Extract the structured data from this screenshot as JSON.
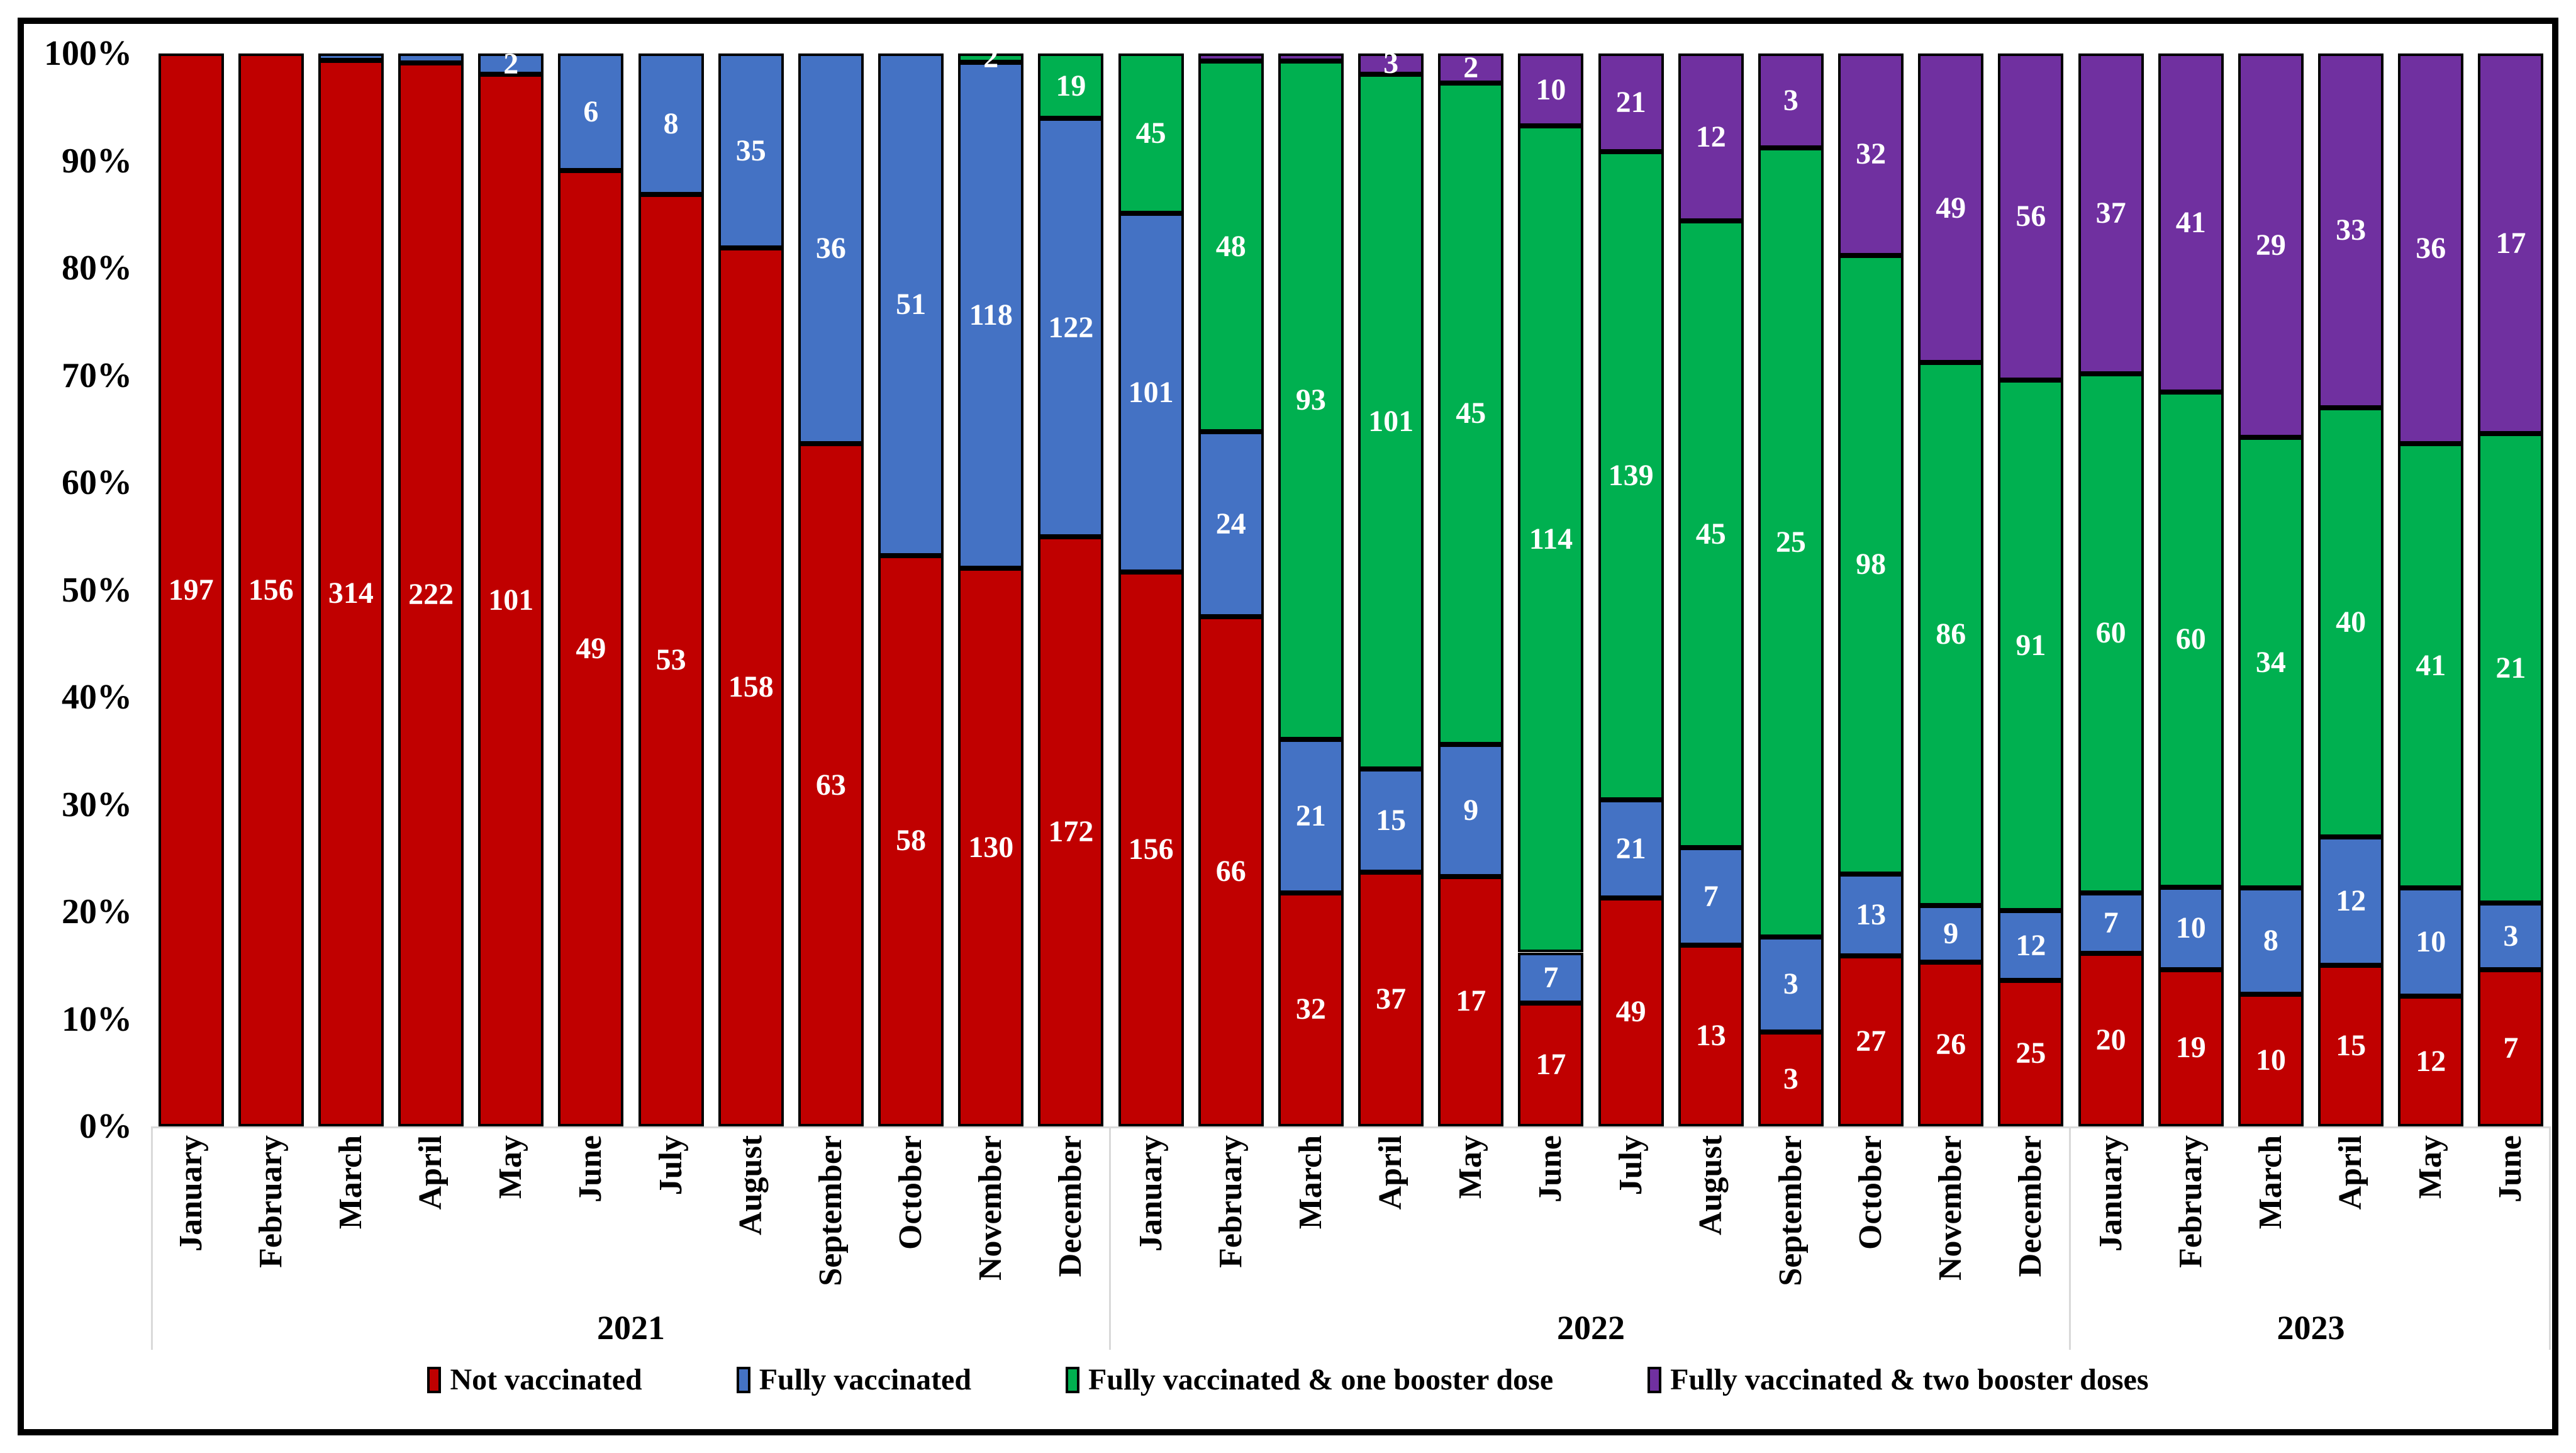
{
  "chart_data": {
    "type": "bar",
    "subtype": "100-percent-stacked-column",
    "title": "",
    "xlabel": "",
    "ylabel": "",
    "y_axis": {
      "ticks": [
        "0%",
        "10%",
        "20%",
        "30%",
        "40%",
        "50%",
        "60%",
        "70%",
        "80%",
        "90%",
        "100%"
      ],
      "range": [
        0,
        100
      ],
      "gridlines": false
    },
    "legend_position": "bottom",
    "label_color": "#ffffff",
    "bar_border_color": "#000000",
    "separator_color": "#d9d9d9",
    "series": [
      {
        "key": "not_vaccinated",
        "name": "Not vaccinated",
        "color": "#c00000"
      },
      {
        "key": "fully_vaccinated",
        "name": "Fully vaccinated",
        "color": "#4472c4"
      },
      {
        "key": "one_booster",
        "name": "Fully vaccinated & one booster dose",
        "color": "#00b050"
      },
      {
        "key": "two_boosters",
        "name": "Fully vaccinated & two booster doses",
        "color": "#7030a0"
      }
    ],
    "year_labels": [
      "2021",
      "2022",
      "2023"
    ],
    "columns": [
      {
        "year": "2021",
        "month": "January",
        "values": [
          197,
          0,
          0,
          0
        ],
        "labels": [
          "197",
          "",
          "",
          ""
        ]
      },
      {
        "year": "2021",
        "month": "February",
        "values": [
          156,
          0,
          0,
          0
        ],
        "labels": [
          "156",
          "",
          "",
          ""
        ]
      },
      {
        "year": "2021",
        "month": "March",
        "values": [
          314,
          2,
          0,
          0
        ],
        "labels": [
          "314",
          "",
          "",
          ""
        ]
      },
      {
        "year": "2021",
        "month": "April",
        "values": [
          222,
          2,
          0,
          0
        ],
        "labels": [
          "222",
          "",
          "",
          ""
        ]
      },
      {
        "year": "2021",
        "month": "May",
        "values": [
          101,
          2,
          0,
          0
        ],
        "labels": [
          "101",
          "2",
          "",
          ""
        ]
      },
      {
        "year": "2021",
        "month": "June",
        "values": [
          49,
          6,
          0,
          0
        ],
        "labels": [
          "49",
          "6",
          "",
          ""
        ]
      },
      {
        "year": "2021",
        "month": "July",
        "values": [
          53,
          8,
          0,
          0
        ],
        "labels": [
          "53",
          "8",
          "",
          ""
        ]
      },
      {
        "year": "2021",
        "month": "August",
        "values": [
          158,
          35,
          0,
          0
        ],
        "labels": [
          "158",
          "35",
          "",
          ""
        ]
      },
      {
        "year": "2021",
        "month": "September",
        "values": [
          63,
          36,
          0,
          0
        ],
        "labels": [
          "63",
          "36",
          "",
          ""
        ]
      },
      {
        "year": "2021",
        "month": "October",
        "values": [
          58,
          51,
          0,
          0
        ],
        "labels": [
          "58",
          "51",
          "",
          ""
        ]
      },
      {
        "year": "2021",
        "month": "November",
        "values": [
          130,
          118,
          2,
          0
        ],
        "labels": [
          "130",
          "118",
          "2",
          ""
        ]
      },
      {
        "year": "2021",
        "month": "December",
        "values": [
          172,
          122,
          19,
          0
        ],
        "labels": [
          "172",
          "122",
          "19",
          ""
        ]
      },
      {
        "year": "2022",
        "month": "January",
        "values": [
          156,
          101,
          45,
          0
        ],
        "labels": [
          "156",
          "101",
          "45",
          ""
        ]
      },
      {
        "year": "2022",
        "month": "February",
        "values": [
          66,
          24,
          48,
          1
        ],
        "labels": [
          "66",
          "24",
          "48",
          ""
        ]
      },
      {
        "year": "2022",
        "month": "March",
        "values": [
          32,
          21,
          93,
          1
        ],
        "labels": [
          "32",
          "21",
          "93",
          ""
        ]
      },
      {
        "year": "2022",
        "month": "April",
        "values": [
          37,
          15,
          101,
          3
        ],
        "labels": [
          "37",
          "15",
          "101",
          "3"
        ]
      },
      {
        "year": "2022",
        "month": "May",
        "values": [
          17,
          9,
          45,
          2
        ],
        "labels": [
          "17",
          "9",
          "45",
          "2"
        ]
      },
      {
        "year": "2022",
        "month": "June",
        "values": [
          17,
          7,
          114,
          10
        ],
        "labels": [
          "17",
          "7",
          "114",
          "10"
        ]
      },
      {
        "year": "2022",
        "month": "July",
        "values": [
          49,
          21,
          139,
          21
        ],
        "labels": [
          "49",
          "21",
          "139",
          "21"
        ]
      },
      {
        "year": "2022",
        "month": "August",
        "values": [
          13,
          7,
          45,
          12
        ],
        "labels": [
          "13",
          "7",
          "45",
          "12"
        ]
      },
      {
        "year": "2022",
        "month": "September",
        "values": [
          3,
          3,
          25,
          3
        ],
        "labels": [
          "3",
          "3",
          "25",
          "3"
        ]
      },
      {
        "year": "2022",
        "month": "October",
        "values": [
          27,
          13,
          98,
          32
        ],
        "labels": [
          "27",
          "13",
          "98",
          "32"
        ]
      },
      {
        "year": "2022",
        "month": "November",
        "values": [
          26,
          9,
          86,
          49
        ],
        "labels": [
          "26",
          "9",
          "86",
          "49"
        ]
      },
      {
        "year": "2022",
        "month": "December",
        "values": [
          25,
          12,
          91,
          56
        ],
        "labels": [
          "25",
          "12",
          "91",
          "56"
        ]
      },
      {
        "year": "2023",
        "month": "January",
        "values": [
          20,
          7,
          60,
          37
        ],
        "labels": [
          "20",
          "7",
          "60",
          "37"
        ]
      },
      {
        "year": "2023",
        "month": "February",
        "values": [
          19,
          10,
          60,
          41
        ],
        "labels": [
          "19",
          "10",
          "60",
          "41"
        ]
      },
      {
        "year": "2023",
        "month": "March",
        "values": [
          10,
          8,
          34,
          29
        ],
        "labels": [
          "10",
          "8",
          "34",
          "29"
        ]
      },
      {
        "year": "2023",
        "month": "April",
        "values": [
          15,
          12,
          40,
          33
        ],
        "labels": [
          "15",
          "12",
          "40",
          "33"
        ]
      },
      {
        "year": "2023",
        "month": "May",
        "values": [
          12,
          10,
          41,
          36
        ],
        "labels": [
          "12",
          "10",
          "41",
          "36"
        ]
      },
      {
        "year": "2023",
        "month": "June",
        "values": [
          7,
          3,
          21,
          17
        ],
        "labels": [
          "7",
          "3",
          "21",
          "17"
        ]
      }
    ]
  }
}
